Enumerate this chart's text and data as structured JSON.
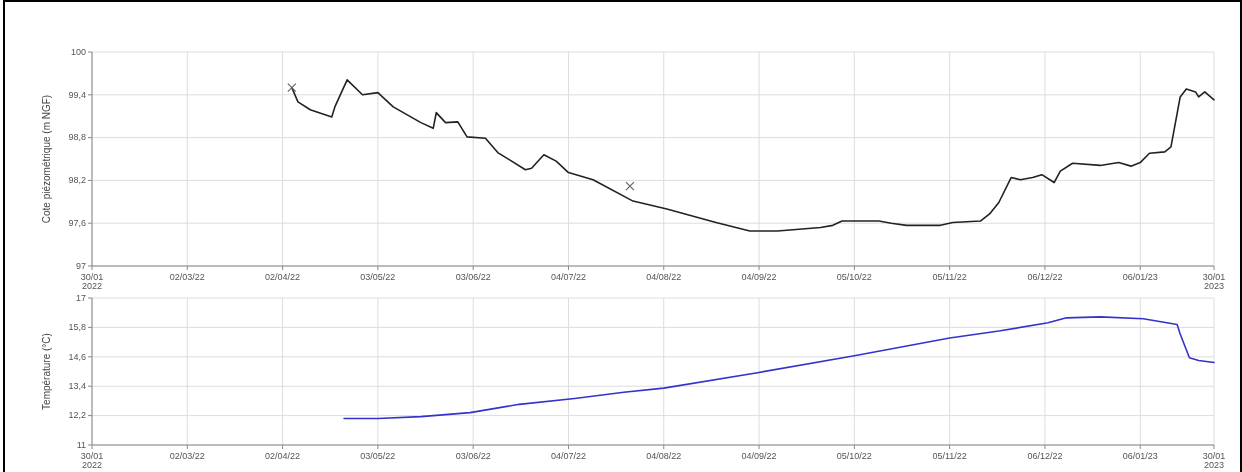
{
  "chart_data": [
    {
      "type": "line",
      "ylabel": "Cote piézométrique (m NGF)",
      "grid": true,
      "xlim": [
        "2022-01-30",
        "2023-01-30"
      ],
      "xticks": [
        {
          "value": "2022-01-30",
          "label": "30/01 2022"
        },
        {
          "value": "2022-03-02",
          "label": "02/03/22"
        },
        {
          "value": "2022-04-02",
          "label": "02/04/22"
        },
        {
          "value": "2022-05-03",
          "label": "03/05/22"
        },
        {
          "value": "2022-06-03",
          "label": "03/06/22"
        },
        {
          "value": "2022-07-04",
          "label": "04/07/22"
        },
        {
          "value": "2022-08-04",
          "label": "04/08/22"
        },
        {
          "value": "2022-09-04",
          "label": "04/09/22"
        },
        {
          "value": "2022-10-05",
          "label": "05/10/22"
        },
        {
          "value": "2022-11-05",
          "label": "05/11/22"
        },
        {
          "value": "2022-12-06",
          "label": "06/12/22"
        },
        {
          "value": "2023-01-06",
          "label": "06/01/23"
        },
        {
          "value": "2023-01-30",
          "label": "30/01 2023"
        }
      ],
      "ylim": [
        97,
        100
      ],
      "yticks": [
        97,
        {
          "value": 97.6,
          "label": "97,6"
        },
        {
          "value": 98.2,
          "label": "98,2"
        },
        {
          "value": 98.8,
          "label": "98,8"
        },
        {
          "value": 99.4,
          "label": "99,4"
        },
        100
      ],
      "series": [
        {
          "color": "#222222",
          "x": [
            "2022-04-05",
            "2022-04-07",
            "2022-04-11",
            "2022-04-18",
            "2022-04-19",
            "2022-04-23",
            "2022-04-28",
            "2022-05-03",
            "2022-05-08",
            "2022-05-17",
            "2022-05-21",
            "2022-05-22",
            "2022-05-25",
            "2022-05-29",
            "2022-06-01",
            "2022-06-07",
            "2022-06-11",
            "2022-06-20",
            "2022-06-22",
            "2022-06-26",
            "2022-06-30",
            "2022-07-04",
            "2022-07-12",
            "2022-07-25",
            "2022-08-05",
            "2022-08-21",
            "2022-09-01",
            "2022-09-10",
            "2022-09-24",
            "2022-09-28",
            "2022-10-01",
            "2022-10-13",
            "2022-10-17",
            "2022-10-22",
            "2022-11-02",
            "2022-11-06",
            "2022-11-15",
            "2022-11-18",
            "2022-11-21",
            "2022-11-25",
            "2022-11-28",
            "2022-12-02",
            "2022-12-05",
            "2022-12-09",
            "2022-12-11",
            "2022-12-15",
            "2022-12-24",
            "2022-12-30",
            "2023-01-03",
            "2023-01-06",
            "2023-01-09",
            "2023-01-14",
            "2023-01-16",
            "2023-01-19",
            "2023-01-21",
            "2023-01-24",
            "2023-01-25",
            "2023-01-27",
            "2023-01-30"
          ],
          "values": [
            99.5,
            99.3,
            99.19,
            99.09,
            99.23,
            99.61,
            99.4,
            99.43,
            99.23,
            99.01,
            98.93,
            99.15,
            99.01,
            99.02,
            98.81,
            98.79,
            98.59,
            98.35,
            98.37,
            98.56,
            98.47,
            98.31,
            98.21,
            97.91,
            97.8,
            97.61,
            97.49,
            97.49,
            97.54,
            97.57,
            97.63,
            97.63,
            97.6,
            97.57,
            97.57,
            97.61,
            97.63,
            97.73,
            97.89,
            98.24,
            98.21,
            98.24,
            98.28,
            98.17,
            98.33,
            98.44,
            98.41,
            98.45,
            98.4,
            98.45,
            98.58,
            98.6,
            98.67,
            99.37,
            99.48,
            99.44,
            99.37,
            99.44,
            99.33
          ]
        },
        {
          "type": "scatter",
          "marker": "cross",
          "color": "#666666",
          "x": [
            "2022-04-05",
            "2022-07-24"
          ],
          "values": [
            99.5,
            98.12
          ]
        }
      ]
    },
    {
      "type": "line",
      "ylabel": "Température (°C)",
      "grid": true,
      "xlim": [
        "2022-01-30",
        "2023-01-30"
      ],
      "xticks": [
        {
          "value": "2022-01-30",
          "label": "30/01 2022"
        },
        {
          "value": "2022-03-02",
          "label": "02/03/22"
        },
        {
          "value": "2022-04-02",
          "label": "02/04/22"
        },
        {
          "value": "2022-05-03",
          "label": "03/05/22"
        },
        {
          "value": "2022-06-03",
          "label": "03/06/22"
        },
        {
          "value": "2022-07-04",
          "label": "04/07/22"
        },
        {
          "value": "2022-08-04",
          "label": "04/08/22"
        },
        {
          "value": "2022-09-04",
          "label": "04/09/22"
        },
        {
          "value": "2022-10-05",
          "label": "05/10/22"
        },
        {
          "value": "2022-11-05",
          "label": "05/11/22"
        },
        {
          "value": "2022-12-06",
          "label": "06/12/22"
        },
        {
          "value": "2023-01-06",
          "label": "06/01/23"
        },
        {
          "value": "2023-01-30",
          "label": "30/01 2023"
        }
      ],
      "ylim": [
        11,
        17
      ],
      "yticks": [
        11,
        {
          "value": 12.2,
          "label": "12,2"
        },
        {
          "value": 13.4,
          "label": "13,4"
        },
        {
          "value": 14.6,
          "label": "14,6"
        },
        {
          "value": 15.8,
          "label": "15,8"
        },
        17
      ],
      "series": [
        {
          "color": "#3333cc",
          "x": [
            "2022-04-22",
            "2022-05-03",
            "2022-05-17",
            "2022-06-02",
            "2022-06-18",
            "2022-07-06",
            "2022-07-22",
            "2022-08-04",
            "2022-09-03",
            "2022-10-05",
            "2022-11-05",
            "2022-11-21",
            "2022-12-07",
            "2022-12-13",
            "2022-12-24",
            "2023-01-07",
            "2023-01-18",
            "2023-01-19",
            "2023-01-22",
            "2023-01-25",
            "2023-01-30"
          ],
          "values": [
            12.08,
            12.08,
            12.16,
            12.32,
            12.66,
            12.9,
            13.15,
            13.32,
            13.94,
            14.64,
            15.37,
            15.65,
            15.99,
            16.19,
            16.23,
            16.15,
            15.92,
            15.53,
            14.56,
            14.45,
            14.37
          ]
        }
      ]
    }
  ]
}
